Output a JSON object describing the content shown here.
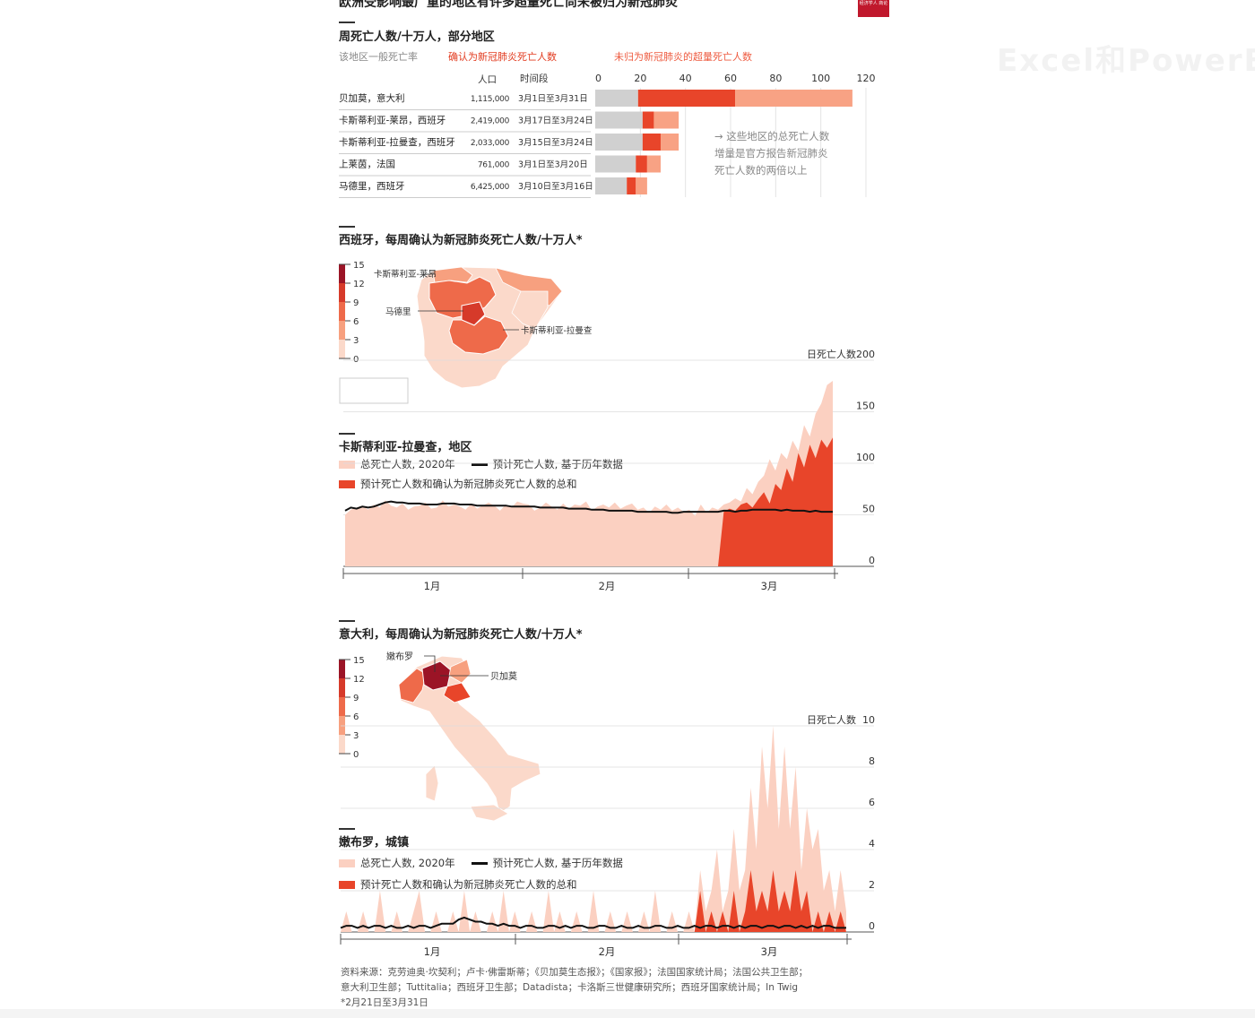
{
  "headline": "欧洲受影响最广重的地区有许多超量死亡尚未被归为新冠肺炎",
  "logo_text": "经济学人 商论",
  "watermark": "Excel和PowerBI",
  "colors": {
    "baseline_grey": "#d0d0d0",
    "confirmed": "#e8452a",
    "unattributed": "#f8a284",
    "total_2020": "#fbd0c1",
    "expected_line": "#111111",
    "map_dark": "#9b1426",
    "map_light": "#fbd9ca"
  },
  "section1": {
    "title": "周死亡人数/十万人，部分地区",
    "legend_grey": "该地区一般死亡率",
    "legend_confirmed": "确认为新冠肺炎死亡人数",
    "legend_unattributed": "未归为新冠肺炎的超量死亡人数",
    "col_population": "人口",
    "col_period": "时间段",
    "annotation": [
      "→ 这些地区的总死亡人数",
      "增量是官方报告新冠肺炎",
      "死亡人数的两倍以上"
    ]
  },
  "section2": {
    "title": "西班牙，每周确认为新冠肺炎死亡人数/十万人*",
    "scale_labels": [
      "15",
      "12",
      "9",
      "6",
      "3",
      "0"
    ],
    "map_labels": {
      "castile_leon": "卡斯蒂利亚-莱昂",
      "madrid": "马德里",
      "castile_lamancha": "卡斯蒂利亚-拉曼查"
    }
  },
  "section3": {
    "title": "卡斯蒂利亚-拉曼查，地区",
    "legend_total": "总死亡人数, 2020年",
    "legend_expected": "预计死亡人数, 基于历年数据",
    "legend_sum": "预计死亡人数和确认为新冠肺炎死亡人数的总和",
    "axis_title": "日死亡人数"
  },
  "section4": {
    "title": "意大利，每周确认为新冠肺炎死亡人数/十万人*",
    "scale_labels": [
      "15",
      "12",
      "9",
      "6",
      "3",
      "0"
    ],
    "map_labels": {
      "nembro": "嫩布罗",
      "bergamo": "贝加莫"
    }
  },
  "section5": {
    "title": "嫩布罗，城镇",
    "legend_total": "总死亡人数, 2020年",
    "legend_expected": "预计死亡人数, 基于历年数据",
    "legend_sum": "预计死亡人数和确认为新冠肺炎死亡人数的总和",
    "axis_title": "日死亡人数"
  },
  "source": {
    "line1": "资料来源：克劳迪奥·坎契利；卢卡·佛雷斯蒂；《贝加莫生态报》；《国家报》；法国国家统计局；法国公共卫生部；",
    "line2": "意大利卫生部；Tuttitalia；西班牙卫生部；Datadista；卡洛斯三世健康研究所；西班牙国家统计局；In Twig",
    "line3": "*2月21日至3月31日"
  },
  "chart_data": [
    {
      "type": "bar",
      "stacked": true,
      "orientation": "horizontal",
      "xlim": [
        0,
        120
      ],
      "x_ticks": [
        "0",
        "20",
        "40",
        "60",
        "80",
        "100",
        "120"
      ],
      "categories": [
        "贝加莫，意大利",
        "卡斯蒂利亚-莱昂，西班牙",
        "卡斯蒂利亚-拉曼查，西班牙",
        "上莱茵，法国",
        "马德里，西班牙"
      ],
      "population": [
        "1,115,000",
        "2,419,000",
        "2,033,000",
        "761,000",
        "6,425,000"
      ],
      "period": [
        "3月1日至3月31日",
        "3月17日至3月24日",
        "3月15日至3月24日",
        "3月1日至3月20日",
        "3月10日至3月16日"
      ],
      "series": [
        {
          "name": "该地区一般死亡率",
          "values": [
            19,
            21,
            21,
            18,
            14
          ]
        },
        {
          "name": "确认为新冠肺炎死亡人数",
          "values": [
            43,
            5,
            8,
            5,
            4
          ]
        },
        {
          "name": "未归为新冠肺炎的超量死亡人数",
          "values": [
            52,
            11,
            8,
            6,
            5
          ]
        }
      ]
    },
    {
      "type": "area",
      "title": "卡斯蒂利亚-拉曼查，地区",
      "ylabel": "日死亡人数",
      "ylim": [
        0,
        200
      ],
      "y_ticks": [
        "0",
        "50",
        "100",
        "150",
        "200"
      ],
      "x_ticks": [
        "1月",
        "2月",
        "3月"
      ],
      "x_start": "2020-01-01",
      "x_end": "2020-03-26",
      "series": [
        {
          "name": "总死亡人数, 2020年",
          "values": [
            50,
            55,
            57,
            59,
            55,
            60,
            57,
            64,
            59,
            57,
            61,
            55,
            58,
            59,
            62,
            56,
            57,
            64,
            58,
            60,
            58,
            55,
            61,
            56,
            59,
            62,
            59,
            54,
            60,
            57,
            63,
            61,
            60,
            54,
            57,
            62,
            58,
            55,
            61,
            56,
            60,
            59,
            63,
            54,
            58,
            60,
            57,
            62,
            56,
            59,
            61,
            55,
            57,
            52,
            58,
            55,
            60,
            54,
            57,
            53,
            55,
            49,
            60,
            52,
            57,
            55,
            60,
            62,
            66,
            63,
            76,
            70,
            82,
            88,
            104,
            93,
            110,
            104,
            122,
            112,
            137,
            126,
            148,
            158,
            176,
            180
          ]
        },
        {
          "name": "预计死亡人数和确认为新冠肺炎死亡人数的总和",
          "values": [
            0,
            0,
            0,
            0,
            0,
            0,
            0,
            0,
            0,
            0,
            0,
            0,
            0,
            0,
            0,
            0,
            0,
            0,
            0,
            0,
            0,
            0,
            0,
            0,
            0,
            0,
            0,
            0,
            0,
            0,
            0,
            0,
            0,
            0,
            0,
            0,
            0,
            0,
            0,
            0,
            0,
            0,
            0,
            0,
            0,
            0,
            0,
            0,
            0,
            0,
            0,
            0,
            0,
            0,
            0,
            0,
            0,
            0,
            0,
            0,
            0,
            0,
            0,
            0,
            0,
            0,
            53,
            56,
            54,
            60,
            62,
            57,
            65,
            72,
            61,
            80,
            74,
            95,
            82,
            110,
            96,
            118,
            105,
            123,
            115,
            125
          ]
        },
        {
          "name": "预计死亡人数, 基于历年数据",
          "values": [
            54,
            57,
            56,
            58,
            57,
            58,
            60,
            62,
            63,
            62,
            62,
            61,
            61,
            61,
            60,
            60,
            60,
            61,
            61,
            61,
            60,
            60,
            60,
            59,
            59,
            59,
            59,
            59,
            59,
            58,
            58,
            58,
            58,
            58,
            57,
            57,
            57,
            57,
            57,
            56,
            56,
            56,
            56,
            55,
            55,
            55,
            54,
            54,
            54,
            54,
            54,
            53,
            53,
            53,
            53,
            53,
            53,
            52,
            52,
            53,
            53,
            53,
            53,
            53,
            53,
            53,
            54,
            54,
            53,
            54,
            54,
            55,
            55,
            55,
            55,
            55,
            54,
            55,
            54,
            54,
            54,
            53,
            54,
            53,
            53,
            53
          ]
        }
      ]
    },
    {
      "type": "area",
      "title": "嫩布罗，城镇",
      "ylabel": "日死亡人数",
      "ylim": [
        0,
        10
      ],
      "y_ticks": [
        "0",
        "2",
        "4",
        "6",
        "8",
        "10"
      ],
      "x_ticks": [
        "1月",
        "2月",
        "3月"
      ],
      "x_start": "2020-01-01",
      "x_end": "2020-03-31",
      "series": [
        {
          "name": "总死亡人数, 2020年",
          "values": [
            0,
            1,
            0,
            0,
            1,
            0,
            0,
            2,
            0,
            0,
            1,
            0,
            0,
            1,
            2,
            0,
            0,
            1,
            0,
            0,
            1,
            0,
            2,
            0,
            1,
            0,
            0,
            1,
            0,
            2,
            0,
            1,
            0,
            0,
            1,
            0,
            0,
            2,
            0,
            1,
            0,
            0,
            1,
            0,
            0,
            2,
            0,
            0,
            1,
            0,
            0,
            1,
            0,
            0,
            1,
            0,
            2,
            0,
            0,
            1,
            0,
            0,
            1,
            0,
            3,
            1,
            2,
            4,
            1,
            2,
            5,
            2,
            3,
            7,
            4,
            9,
            6,
            10,
            5,
            9,
            5,
            8,
            3,
            6,
            4,
            5,
            2,
            3,
            1,
            3,
            1
          ]
        },
        {
          "name": "预计死亡人数和确认为新冠肺炎死亡人数的总和",
          "values": [
            0,
            0,
            0,
            0,
            0,
            0,
            0,
            0,
            0,
            0,
            0,
            0,
            0,
            0,
            0,
            0,
            0,
            0,
            0,
            0,
            0,
            0,
            0,
            0,
            0,
            0,
            0,
            0,
            0,
            0,
            0,
            0,
            0,
            0,
            0,
            0,
            0,
            0,
            0,
            0,
            0,
            0,
            0,
            0,
            0,
            0,
            0,
            0,
            0,
            0,
            0,
            0,
            0,
            0,
            0,
            0,
            0,
            0,
            0,
            0,
            0,
            0,
            0,
            0,
            2,
            0,
            1,
            0,
            1,
            0,
            2,
            0,
            1,
            3,
            1,
            2,
            1,
            3,
            1,
            2,
            1,
            3,
            1,
            2,
            0,
            1,
            0,
            1,
            0,
            1,
            0
          ]
        },
        {
          "name": "预计死亡人数, 基于历年数据",
          "values": [
            0.2,
            0.3,
            0.3,
            0.2,
            0.3,
            0.2,
            0.3,
            0.3,
            0.2,
            0.3,
            0.2,
            0.2,
            0.3,
            0.2,
            0.3,
            0.3,
            0.2,
            0.3,
            0.4,
            0.4,
            0.4,
            0.6,
            0.7,
            0.6,
            0.5,
            0.5,
            0.4,
            0.4,
            0.3,
            0.4,
            0.3,
            0.3,
            0.2,
            0.3,
            0.3,
            0.2,
            0.2,
            0.3,
            0.3,
            0.2,
            0.3,
            0.2,
            0.3,
            0.3,
            0.2,
            0.2,
            0.3,
            0.3,
            0.2,
            0.2,
            0.3,
            0.2,
            0.2,
            0.3,
            0.2,
            0.2,
            0.3,
            0.3,
            0.2,
            0.2,
            0.3,
            0.2,
            0.2,
            0.3,
            0.2,
            0.3,
            0.3,
            0.2,
            0.3,
            0.3,
            0.2,
            0.3,
            0.2,
            0.3,
            0.3,
            0.2,
            0.3,
            0.3,
            0.2,
            0.3,
            0.3,
            0.2,
            0.3,
            0.2,
            0.3,
            0.2,
            0.3,
            0.3,
            0.2,
            0.2,
            0.2
          ]
        }
      ]
    }
  ]
}
